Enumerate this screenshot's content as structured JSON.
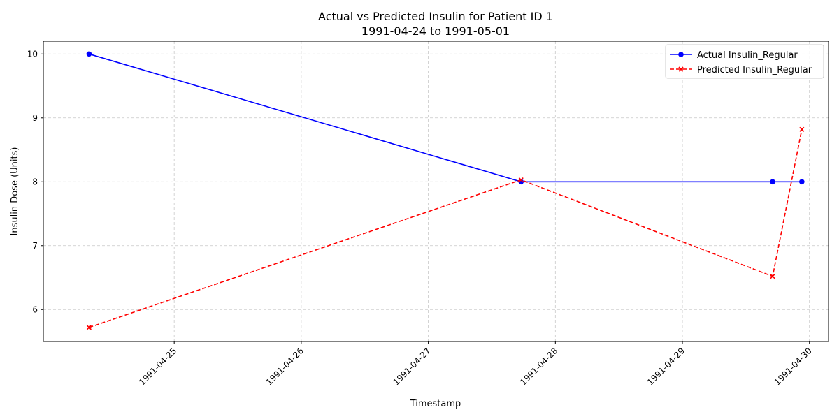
{
  "chart_data": {
    "type": "line",
    "title": "Actual vs Predicted Insulin for Patient ID 1",
    "subtitle": "1991-04-24 to 1991-05-01",
    "xlabel": "Timestamp",
    "ylabel": "Insulin Dose (Units)",
    "x_unit": "days since 1991-04-24 00:00",
    "xlim": [
      -0.03,
      6.15
    ],
    "ylim": [
      5.5,
      10.2
    ],
    "grid": true,
    "legend_position": "top-right",
    "x_ticks": [
      {
        "value": 1,
        "label": "1991-04-25"
      },
      {
        "value": 2,
        "label": "1991-04-26"
      },
      {
        "value": 3,
        "label": "1991-04-27"
      },
      {
        "value": 4,
        "label": "1991-04-28"
      },
      {
        "value": 5,
        "label": "1991-04-29"
      },
      {
        "value": 6,
        "label": "1991-04-30"
      }
    ],
    "y_ticks": [
      {
        "value": 6,
        "label": "6"
      },
      {
        "value": 7,
        "label": "7"
      },
      {
        "value": 8,
        "label": "8"
      },
      {
        "value": 9,
        "label": "9"
      },
      {
        "value": 10,
        "label": "10"
      }
    ],
    "series": [
      {
        "name": "Actual Insulin_Regular",
        "color": "#0000ff",
        "line_style": "solid",
        "marker": "circle",
        "x": [
          0.33,
          3.73,
          5.71,
          5.94
        ],
        "values": [
          10,
          8,
          8,
          8
        ]
      },
      {
        "name": "Predicted Insulin_Regular",
        "color": "#ff0000",
        "line_style": "dashed",
        "marker": "x",
        "x": [
          0.33,
          3.73,
          5.71,
          5.94
        ],
        "values": [
          5.72,
          8.03,
          6.52,
          8.82
        ]
      }
    ]
  }
}
